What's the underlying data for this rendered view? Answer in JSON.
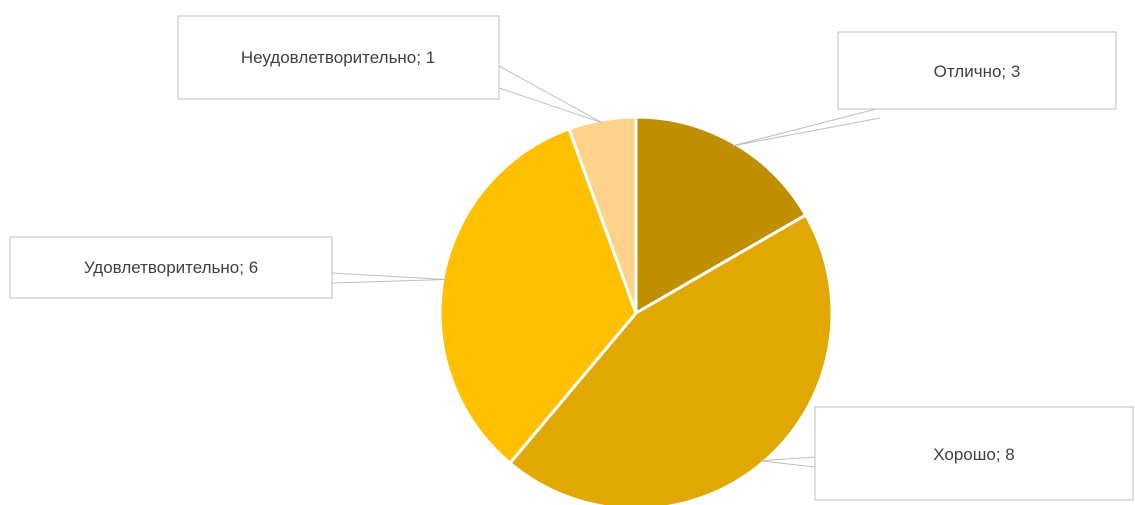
{
  "chart_data": {
    "type": "pie",
    "title": "",
    "categories": [
      "Отлично",
      "Хорошо",
      "Удовлетворительно",
      "Неудовлетворительно"
    ],
    "values": [
      3,
      8,
      6,
      1
    ],
    "colors": [
      "#bf8f00",
      "#e0a800",
      "#ffc000",
      "#ffd28a"
    ],
    "data_labels": [
      "Отлично; 3",
      "Хорошо; 8",
      "Удовлетворительно; 6",
      "Неудовлетворительно; 1"
    ],
    "legend": "none"
  }
}
